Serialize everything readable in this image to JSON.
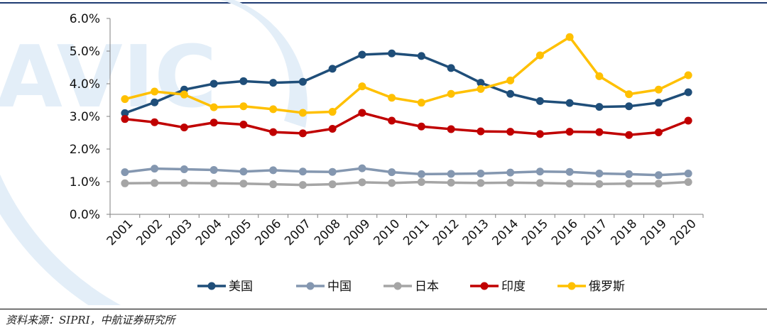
{
  "chart_data": {
    "type": "line",
    "title": "",
    "xlabel": "",
    "ylabel": "",
    "categories": [
      "2001",
      "2002",
      "2003",
      "2004",
      "2005",
      "2006",
      "2007",
      "2008",
      "2009",
      "2010",
      "2011",
      "2012",
      "2013",
      "2014",
      "2015",
      "2016",
      "2017",
      "2018",
      "2019",
      "2020"
    ],
    "ylim": [
      0,
      6
    ],
    "yticks": [
      "0.0%",
      "1.0%",
      "2.0%",
      "3.0%",
      "4.0%",
      "5.0%",
      "6.0%"
    ],
    "grid": false,
    "legend_position": "bottom",
    "series": [
      {
        "name": "美国",
        "color": "#1f4e79",
        "values": [
          3.1,
          3.43,
          3.82,
          4.0,
          4.08,
          4.03,
          4.06,
          4.46,
          4.89,
          4.93,
          4.85,
          4.48,
          4.03,
          3.69,
          3.47,
          3.41,
          3.29,
          3.31,
          3.42,
          3.74
        ]
      },
      {
        "name": "中国",
        "color": "#8497b0",
        "values": [
          1.29,
          1.4,
          1.38,
          1.36,
          1.31,
          1.35,
          1.31,
          1.3,
          1.41,
          1.29,
          1.23,
          1.24,
          1.25,
          1.28,
          1.31,
          1.3,
          1.25,
          1.23,
          1.2,
          1.25
        ]
      },
      {
        "name": "日本",
        "color": "#a5a5a5",
        "values": [
          0.95,
          0.96,
          0.96,
          0.95,
          0.94,
          0.92,
          0.9,
          0.92,
          0.98,
          0.96,
          0.99,
          0.97,
          0.96,
          0.97,
          0.96,
          0.94,
          0.93,
          0.94,
          0.94,
          0.99
        ]
      },
      {
        "name": "印度",
        "color": "#c00000",
        "values": [
          2.92,
          2.82,
          2.66,
          2.81,
          2.75,
          2.52,
          2.48,
          2.62,
          3.11,
          2.87,
          2.69,
          2.61,
          2.54,
          2.53,
          2.46,
          2.53,
          2.52,
          2.43,
          2.51,
          2.87
        ]
      },
      {
        "name": "俄罗斯",
        "color": "#ffc000",
        "values": [
          3.53,
          3.76,
          3.67,
          3.28,
          3.31,
          3.22,
          3.11,
          3.14,
          3.92,
          3.57,
          3.42,
          3.69,
          3.84,
          4.1,
          4.87,
          5.43,
          4.23,
          3.68,
          3.82,
          4.26
        ]
      }
    ]
  },
  "source_text": "资料来源：SIPRI，中航证券研究所"
}
